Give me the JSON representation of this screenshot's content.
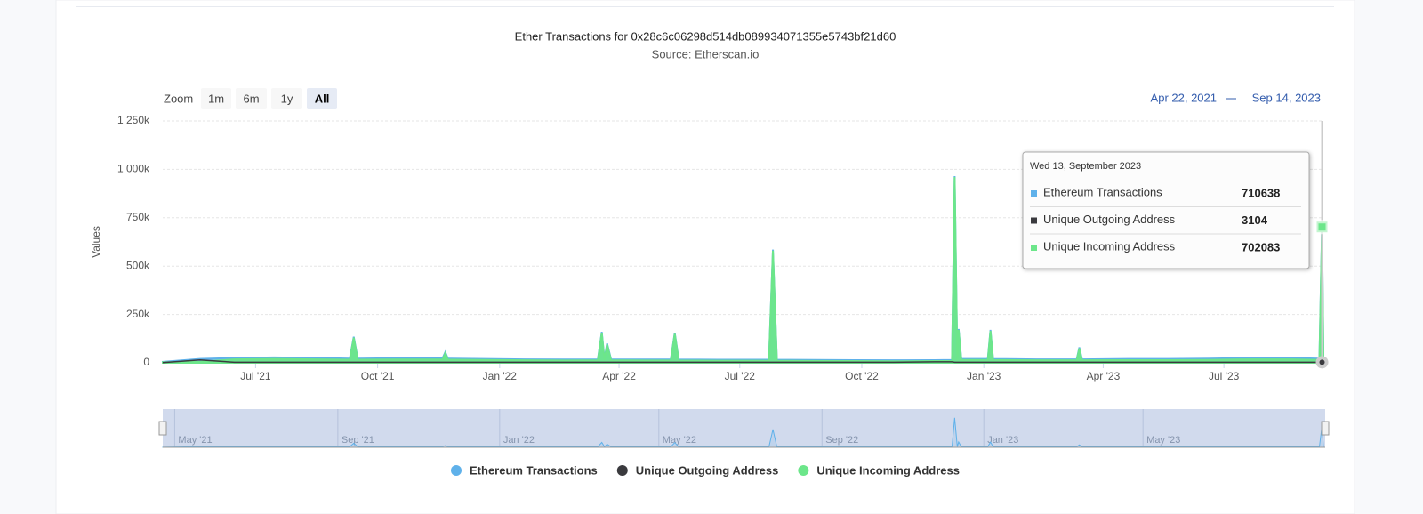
{
  "chart_data": {
    "type": "area",
    "title": "Ether Transactions for 0x28c6c06298d514db089934071355e5743bf21d60",
    "subtitle": "Source: Etherscan.io",
    "y_axis_title": "Values",
    "range_selector": {
      "label": "Zoom",
      "buttons": [
        "1m",
        "6m",
        "1y",
        "All"
      ],
      "selected": 3,
      "from": "Apr 22, 2021",
      "to": "Sep 14, 2023"
    },
    "x": [
      "2021-04-22",
      "2021-05-20",
      "2021-06-15",
      "2021-07-15",
      "2021-08-15",
      "2021-09-10",
      "2021-09-13",
      "2021-09-16",
      "2021-10-15",
      "2021-11-19",
      "2021-11-21",
      "2021-11-23",
      "2021-12-20",
      "2022-01-20",
      "2022-02-20",
      "2022-03-16",
      "2022-03-19",
      "2022-03-21",
      "2022-03-23",
      "2022-03-26",
      "2022-04-20",
      "2022-05-10",
      "2022-05-13",
      "2022-05-16",
      "2022-06-15",
      "2022-07-23",
      "2022-07-26",
      "2022-07-29",
      "2022-08-25",
      "2022-09-25",
      "2022-10-25",
      "2022-11-25",
      "2022-12-08",
      "2022-12-10",
      "2022-12-12",
      "2022-12-13",
      "2022-12-15",
      "2023-01-04",
      "2023-01-06",
      "2023-01-08",
      "2023-02-10",
      "2023-03-12",
      "2023-03-14",
      "2023-03-16",
      "2023-04-20",
      "2023-05-20",
      "2023-06-20",
      "2023-07-20",
      "2023-08-20",
      "2023-09-11",
      "2023-09-13",
      "2023-09-14"
    ],
    "series": [
      {
        "name": "Ethereum Transactions",
        "color": "#5fb1ea",
        "values": [
          5000,
          20000,
          25000,
          28000,
          25000,
          22000,
          135000,
          22000,
          24000,
          25000,
          55000,
          22000,
          20000,
          18000,
          17000,
          18000,
          160000,
          20000,
          100000,
          18000,
          17000,
          17000,
          155000,
          17000,
          16000,
          16000,
          585000,
          16000,
          15000,
          14000,
          13000,
          14000,
          15000,
          965000,
          20000,
          175000,
          20000,
          20000,
          170000,
          20000,
          18000,
          18000,
          80000,
          18000,
          20000,
          20000,
          22000,
          25000,
          25000,
          22000,
          710638,
          20000
        ]
      },
      {
        "name": "Unique Outgoing Address",
        "color": "#3a3a3e",
        "values": [
          1000,
          15000,
          3000,
          3000,
          3000,
          3000,
          3000,
          3000,
          3000,
          3000,
          3000,
          3000,
          3000,
          3000,
          3000,
          3000,
          3000,
          3000,
          3000,
          3000,
          3000,
          3000,
          3000,
          3000,
          3000,
          3000,
          3000,
          3000,
          3000,
          3000,
          3000,
          5000,
          5000,
          3000,
          3000,
          3000,
          3000,
          3000,
          3000,
          3000,
          3000,
          3000,
          3000,
          3000,
          3000,
          3000,
          3000,
          3000,
          3000,
          3000,
          3104,
          3000
        ]
      },
      {
        "name": "Unique Incoming Address",
        "color": "#6ce68a",
        "values": [
          3000,
          5000,
          18000,
          20000,
          18000,
          16000,
          130000,
          16000,
          17000,
          18000,
          50000,
          16000,
          15000,
          13000,
          12000,
          13000,
          155000,
          14000,
          95000,
          13000,
          12000,
          12000,
          150000,
          12000,
          11000,
          11000,
          580000,
          11000,
          10000,
          9000,
          8000,
          9000,
          10000,
          960000,
          15000,
          170000,
          15000,
          15000,
          165000,
          15000,
          13000,
          13000,
          75000,
          13000,
          14000,
          14000,
          15000,
          18000,
          18000,
          15000,
          702083,
          15000
        ]
      }
    ],
    "xlim": [
      "2021-04-22",
      "2023-09-14"
    ],
    "xticks": [
      {
        "value": "2021-07-01",
        "label": "Jul '21"
      },
      {
        "value": "2021-10-01",
        "label": "Oct '21"
      },
      {
        "value": "2022-01-01",
        "label": "Jan '22"
      },
      {
        "value": "2022-04-01",
        "label": "Apr '22"
      },
      {
        "value": "2022-07-01",
        "label": "Jul '22"
      },
      {
        "value": "2022-10-01",
        "label": "Oct '22"
      },
      {
        "value": "2023-01-01",
        "label": "Jan '23"
      },
      {
        "value": "2023-04-01",
        "label": "Apr '23"
      },
      {
        "value": "2023-07-01",
        "label": "Jul '23"
      }
    ],
    "navigator_xticks": [
      {
        "value": "2021-05-01",
        "label": "May '21"
      },
      {
        "value": "2021-09-01",
        "label": "Sep '21"
      },
      {
        "value": "2022-01-01",
        "label": "Jan '22"
      },
      {
        "value": "2022-05-01",
        "label": "May '22"
      },
      {
        "value": "2022-09-01",
        "label": "Sep '22"
      },
      {
        "value": "2023-01-01",
        "label": "Jan '23"
      },
      {
        "value": "2023-05-01",
        "label": "May '23"
      }
    ],
    "ylim": [
      0,
      1250000
    ],
    "yticks": [
      0,
      {
        "value": 250000,
        "label": "250k"
      },
      {
        "value": 500000,
        "label": "500k"
      },
      {
        "value": 750000,
        "label": "750k"
      },
      {
        "value": 1000000,
        "label": "1 000k"
      },
      {
        "value": 1250000,
        "label": "1 250k"
      }
    ],
    "grid": true,
    "tooltip": {
      "date": "Wed 13, September 2023",
      "index": 50
    }
  }
}
